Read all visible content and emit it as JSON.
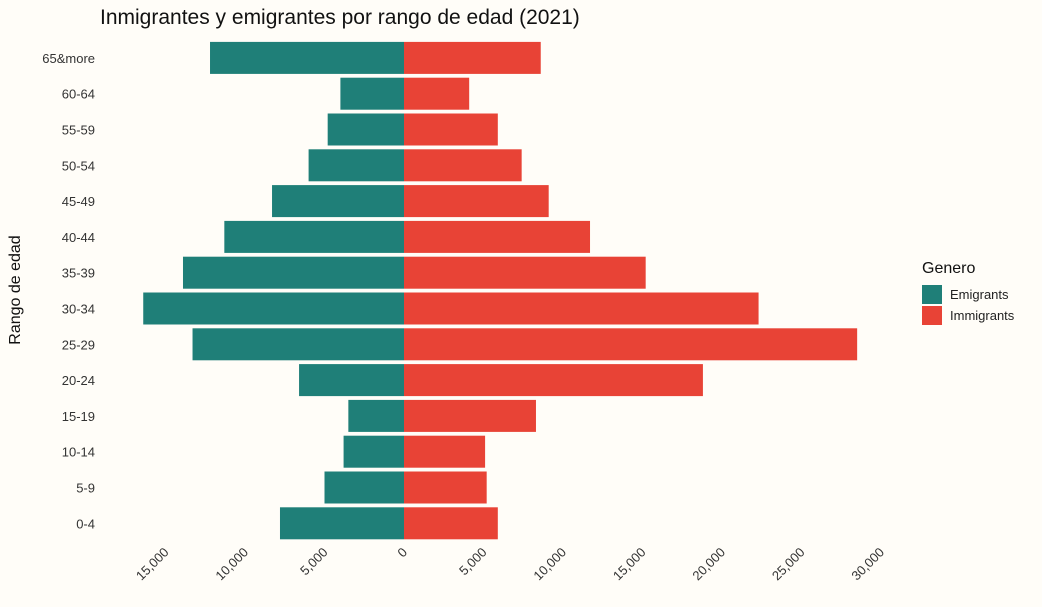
{
  "chart_data": {
    "type": "bar",
    "orientation": "horizontal-population-pyramid",
    "title": "Inmigrantes y emigrantes por rango de edad (2021)",
    "ylabel": "Rango de edad",
    "xlabel": "",
    "categories": [
      "0-4",
      "5-9",
      "10-14",
      "15-19",
      "20-24",
      "25-29",
      "30-34",
      "35-39",
      "40-44",
      "45-49",
      "50-54",
      "55-59",
      "60-64",
      "65&more"
    ],
    "series": [
      {
        "name": "Emigrants",
        "color": "#1f7f78",
        "side": "left",
        "values": [
          7800,
          5000,
          3800,
          3500,
          6600,
          13300,
          16400,
          13900,
          11300,
          8300,
          6000,
          4800,
          4000,
          12200
        ]
      },
      {
        "name": "Immigrants",
        "color": "#e84336",
        "side": "right",
        "values": [
          5900,
          5200,
          5100,
          8300,
          18800,
          28500,
          22300,
          15200,
          11700,
          9100,
          7400,
          5900,
          4100,
          8600
        ]
      }
    ],
    "xlim": [
      -17000,
      30000
    ],
    "xticks": [
      -15000,
      -10000,
      -5000,
      0,
      5000,
      10000,
      15000,
      20000,
      25000,
      30000
    ],
    "xtick_labels": [
      "15,000",
      "10,000",
      "5,000",
      "0",
      "5,000",
      "10,000",
      "15,000",
      "20,000",
      "25,000",
      "30,000"
    ],
    "grid": false,
    "legend": {
      "title": "Genero",
      "position": "right",
      "entries": [
        "Emigrants",
        "Immigrants"
      ]
    }
  }
}
